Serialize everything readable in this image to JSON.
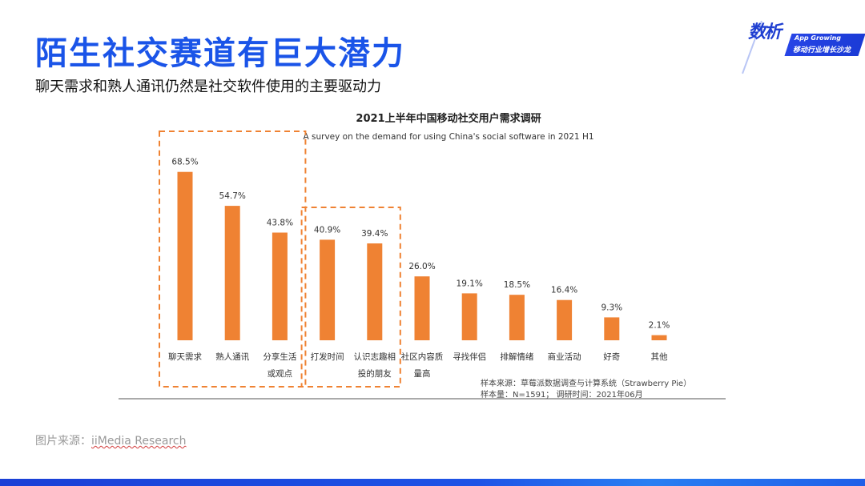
{
  "header": {
    "title": "陌生社交赛道有巨大潜力",
    "subtitle": "聊天需求和熟人通讯仍然是社交软件使用的主要驱动力"
  },
  "logo": {
    "main": "数析",
    "english": "App Growing",
    "chinese": "移动行业增长沙龙"
  },
  "chart_data": {
    "type": "bar",
    "title": "2021上半年中国移动社交用户需求调研",
    "subtitle": "A survey on the demand for using China's social software in 2021 H1",
    "categories": [
      "聊天需求",
      "熟人通讯",
      "分享生活或观点",
      "打发时间",
      "认识志趣相投的朋友",
      "社区内容质量高",
      "寻找伴侣",
      "排解情绪",
      "商业活动",
      "好奇",
      "其他"
    ],
    "category_lines": [
      [
        "聊天需求"
      ],
      [
        "熟人通讯"
      ],
      [
        "分享生活",
        "或观点"
      ],
      [
        "打发时间"
      ],
      [
        "认识志趣相",
        "投的朋友"
      ],
      [
        "社区内容质",
        "量高"
      ],
      [
        "寻找伴侣"
      ],
      [
        "排解情绪"
      ],
      [
        "商业活动"
      ],
      [
        "好奇"
      ],
      [
        "其他"
      ]
    ],
    "values": [
      68.5,
      54.7,
      43.8,
      40.9,
      39.4,
      26.0,
      19.1,
      18.5,
      16.4,
      9.3,
      2.1
    ],
    "value_labels": [
      "68.5%",
      "54.7%",
      "43.8%",
      "40.9%",
      "39.4%",
      "26.0%",
      "19.1%",
      "18.5%",
      "16.4%",
      "9.3%",
      "2.1%"
    ],
    "unit": "%",
    "bar_color": "#ef8233",
    "highlight_color": "#ef8233",
    "highlight_groups": [
      [
        0,
        2
      ],
      [
        3,
        4
      ]
    ],
    "ylim": [
      0,
      100
    ],
    "grid": false,
    "notes": [
      "样本来源：草莓派数据调查与计算系统（Strawberry Pie）",
      "样本量：N=1591；  调研时间：2021年06月"
    ]
  },
  "source": {
    "label": "图片来源：",
    "name": "iiMedia Research"
  }
}
